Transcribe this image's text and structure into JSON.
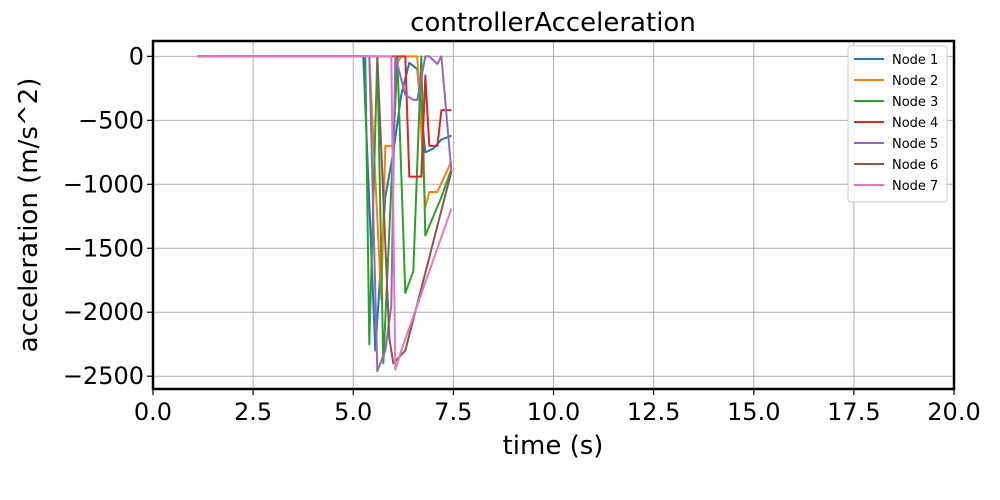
{
  "chart_data": {
    "type": "line",
    "title": "controllerAcceleration",
    "xlabel": "time (s)",
    "ylabel": "acceleration (m/s^2)",
    "xlim": [
      0,
      20
    ],
    "ylim": [
      -2600,
      120
    ],
    "xticks": [
      0,
      2.5,
      5,
      7.5,
      10,
      12.5,
      15,
      17.5,
      20
    ],
    "xtick_labels": [
      "0.0",
      "2.5",
      "5.0",
      "7.5",
      "10.0",
      "12.5",
      "15.0",
      "17.5",
      "20.0"
    ],
    "yticks": [
      0,
      -500,
      -1000,
      -1500,
      -2000,
      -2500
    ],
    "ytick_labels": [
      "0",
      "−500",
      "−1000",
      "−1500",
      "−2000",
      "−2500"
    ],
    "grid": true,
    "legend_position": "top-right",
    "series": [
      {
        "name": "Node 1",
        "color": "#1f77b4",
        "x": [
          1.1,
          5.0,
          5.25,
          5.55,
          5.8,
          6.0,
          6.2,
          6.4,
          6.6,
          6.8,
          7.0,
          7.2,
          7.45
        ],
        "y": [
          0,
          0,
          0,
          -2300,
          -1100,
          -750,
          -300,
          -50,
          -100,
          -750,
          -720,
          -650,
          -620
        ]
      },
      {
        "name": "Node 2",
        "color": "#ff7f0e",
        "x": [
          1.1,
          5.1,
          5.4,
          5.7,
          5.8,
          6.0,
          6.1,
          6.2,
          6.5,
          6.6,
          6.8,
          6.9,
          7.1,
          7.45
        ],
        "y": [
          0,
          0,
          0,
          -1900,
          -700,
          -700,
          -50,
          0,
          0,
          0,
          -1180,
          -1060,
          -1060,
          -820
        ]
      },
      {
        "name": "Node 3",
        "color": "#2ca02c",
        "x": [
          1.1,
          5.1,
          5.3,
          5.4,
          5.6,
          5.75,
          6.1,
          6.3,
          6.5,
          6.7,
          6.8,
          7.2,
          7.45
        ],
        "y": [
          0,
          0,
          0,
          -2250,
          0,
          -2400,
          0,
          -1850,
          -1680,
          0,
          -1400,
          -1100,
          -880
        ]
      },
      {
        "name": "Node 4",
        "color": "#d62728",
        "x": [
          1.1,
          5.5,
          5.9,
          6.0,
          6.3,
          6.4,
          6.7,
          6.8,
          6.9,
          7.1,
          7.2,
          7.45
        ],
        "y": [
          0,
          0,
          0,
          0,
          0,
          -940,
          -940,
          -150,
          -700,
          -700,
          -420,
          -420
        ]
      },
      {
        "name": "Node 5",
        "color": "#9467bd",
        "x": [
          1.1,
          5.3,
          5.4,
          5.6,
          5.8,
          5.95,
          6.05,
          6.3,
          6.5,
          6.6,
          6.8,
          6.9,
          7.1,
          7.2,
          7.45
        ],
        "y": [
          0,
          0,
          0,
          -2460,
          -2300,
          -1950,
          0,
          -300,
          -340,
          -340,
          0,
          0,
          -60,
          0,
          -900
        ]
      },
      {
        "name": "Node 6",
        "color": "#8c564b",
        "x": [
          1.1,
          5.4,
          5.6,
          5.9,
          6.0,
          6.3,
          7.45
        ],
        "y": [
          0,
          0,
          0,
          -2200,
          -2400,
          -2300,
          -900
        ]
      },
      {
        "name": "Node 7",
        "color": "#e377c2",
        "x": [
          1.1,
          5.5,
          5.7,
          5.95,
          6.05,
          6.2,
          7.45
        ],
        "y": [
          0,
          0,
          0,
          0,
          -2450,
          -2300,
          -1190
        ]
      }
    ]
  }
}
